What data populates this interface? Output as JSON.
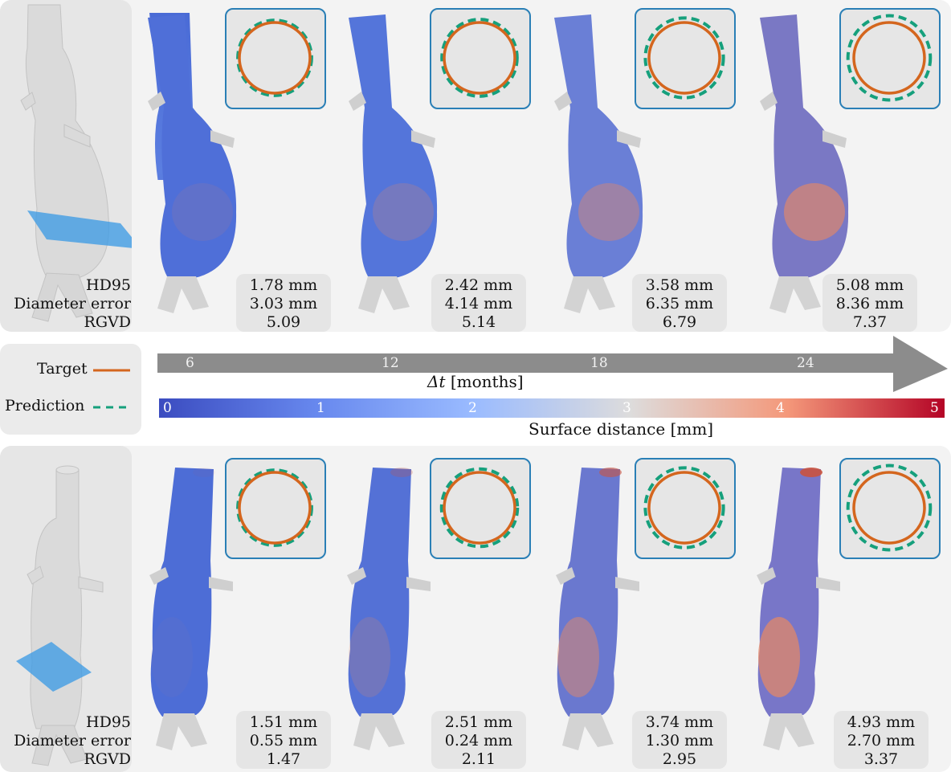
{
  "metric_labels": [
    "HD95",
    "Diameter error",
    "RGVD"
  ],
  "top_case": {
    "results": [
      {
        "hd95": "1.78 mm",
        "diameter_error": "3.03 mm",
        "rgvd": "5.09"
      },
      {
        "hd95": "2.42 mm",
        "diameter_error": "4.14 mm",
        "rgvd": "5.14"
      },
      {
        "hd95": "3.58 mm",
        "diameter_error": "6.35 mm",
        "rgvd": "6.79"
      },
      {
        "hd95": "5.08 mm",
        "diameter_error": "8.36 mm",
        "rgvd": "7.37"
      }
    ]
  },
  "bottom_case": {
    "results": [
      {
        "hd95": "1.51 mm",
        "diameter_error": "0.55 mm",
        "rgvd": "1.47"
      },
      {
        "hd95": "2.51 mm",
        "diameter_error": "0.24 mm",
        "rgvd": "2.11"
      },
      {
        "hd95": "3.74 mm",
        "diameter_error": "1.30 mm",
        "rgvd": "2.95"
      },
      {
        "hd95": "4.93 mm",
        "diameter_error": "2.70 mm",
        "rgvd": "3.37"
      }
    ]
  },
  "legend": {
    "target_label": "Target",
    "prediction_label": "Prediction",
    "target_color": "#d4661e",
    "prediction_color": "#16a07c"
  },
  "time_axis": {
    "label_symbol": "Δt",
    "label_unit": "[months]",
    "ticks": [
      "6",
      "12",
      "18",
      "24"
    ],
    "color": "#8c8c8c"
  },
  "colorbar": {
    "label": "Surface distance [mm]",
    "ticks": [
      "0",
      "1",
      "2",
      "3",
      "4",
      "5"
    ],
    "colormap": [
      "#3b4cc0",
      "#6788ee",
      "#9abbff",
      "#dddcdc",
      "#f4987a",
      "#b40426"
    ]
  }
}
